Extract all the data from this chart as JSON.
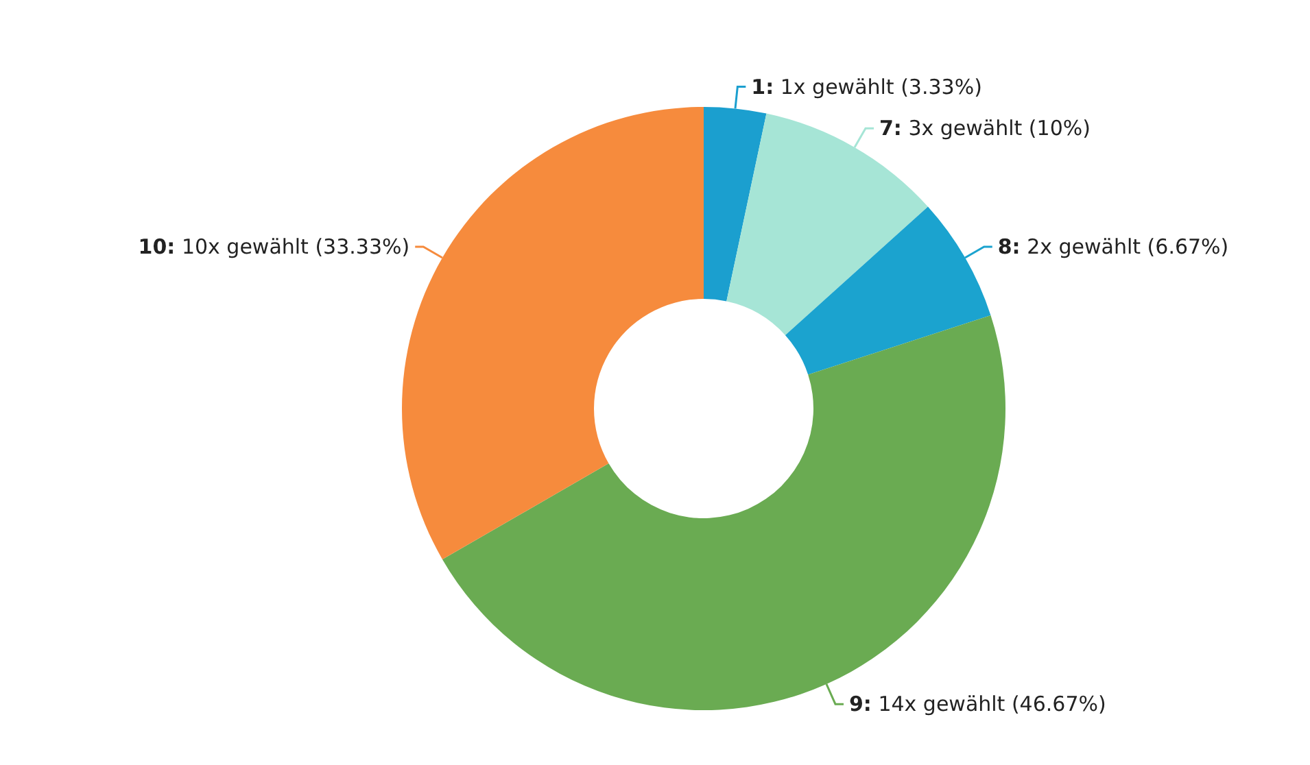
{
  "chart_data": {
    "type": "donut",
    "categories": [
      "1: 1x gewählt (3.33%)",
      "7: 3x gewählt (10%)",
      "8: 2x gewählt (6.67%)",
      "9: 14x gewählt (46.67%)",
      "10: 10x gewählt (33.33%)"
    ],
    "values": [
      1,
      3,
      2,
      14,
      10
    ],
    "colors": [
      "#1b9fcf",
      "#a6e5d6",
      "#1ba3cf",
      "#6aab52",
      "#f68b3d"
    ],
    "legend": false
  }
}
